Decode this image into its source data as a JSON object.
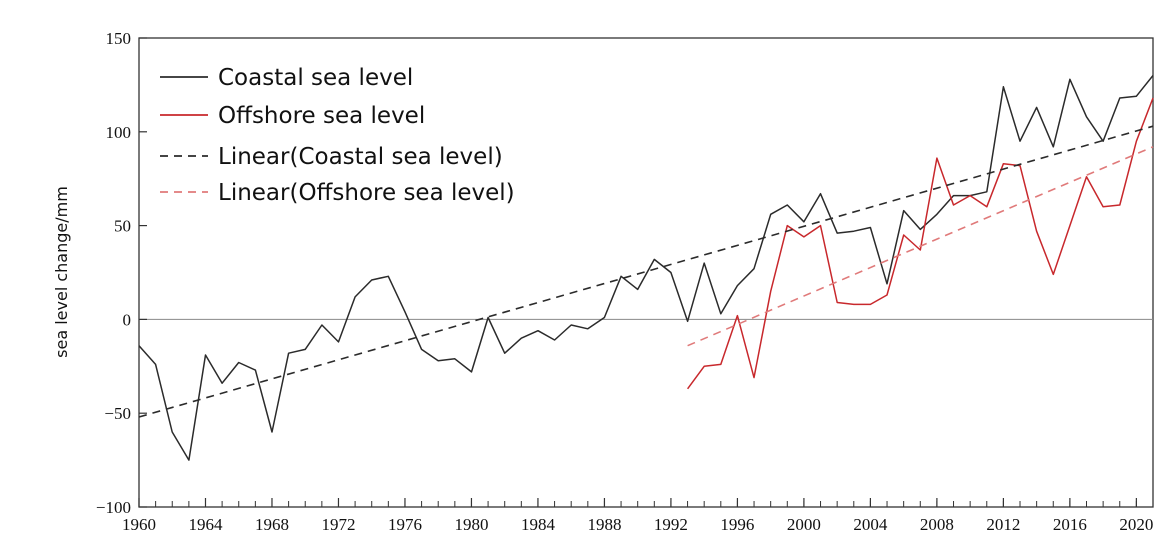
{
  "chart_data": {
    "type": "line",
    "title": "",
    "xlabel": "",
    "ylabel": "sea level change/mm",
    "xlim": [
      1960,
      2021
    ],
    "ylim": [
      -100,
      150
    ],
    "x_ticks": [
      1960,
      1964,
      1968,
      1972,
      1976,
      1980,
      1984,
      1988,
      1992,
      1996,
      2000,
      2004,
      2008,
      2012,
      2016,
      2020
    ],
    "y_ticks": [
      -100,
      -50,
      0,
      50,
      100,
      150
    ],
    "grid": false,
    "zero_line": true,
    "legend_position": "top-left",
    "series": [
      {
        "name": "Coastal sea level",
        "color": "#2b2b2b",
        "style": "solid",
        "x": [
          1960,
          1961,
          1962,
          1963,
          1964,
          1965,
          1966,
          1967,
          1968,
          1969,
          1970,
          1971,
          1972,
          1973,
          1974,
          1975,
          1976,
          1977,
          1978,
          1979,
          1980,
          1981,
          1982,
          1983,
          1984,
          1985,
          1986,
          1987,
          1988,
          1989,
          1990,
          1991,
          1992,
          1993,
          1994,
          1995,
          1996,
          1997,
          1998,
          1999,
          2000,
          2001,
          2002,
          2003,
          2004,
          2005,
          2006,
          2007,
          2008,
          2009,
          2010,
          2011,
          2012,
          2013,
          2014,
          2015,
          2016,
          2017,
          2018,
          2019,
          2020,
          2021
        ],
        "values": [
          -14,
          -24,
          -60,
          -75,
          -19,
          -34,
          -23,
          -27,
          -60,
          -18,
          -16,
          -3,
          -12,
          12,
          21,
          23,
          4,
          -16,
          -22,
          -21,
          -28,
          1,
          -18,
          -10,
          -6,
          -11,
          -3,
          -5,
          1,
          23,
          16,
          32,
          25,
          -1,
          30,
          3,
          18,
          27,
          56,
          61,
          52,
          67,
          46,
          47,
          49,
          19,
          58,
          48,
          56,
          66,
          66,
          68,
          124,
          95,
          113,
          92,
          128,
          108,
          95,
          118,
          119,
          130
        ]
      },
      {
        "name": "Offshore sea level",
        "color": "#c8282c",
        "style": "solid",
        "x": [
          1993,
          1994,
          1995,
          1996,
          1997,
          1998,
          1999,
          2000,
          2001,
          2002,
          2003,
          2004,
          2005,
          2006,
          2007,
          2008,
          2009,
          2010,
          2011,
          2012,
          2013,
          2014,
          2015,
          2016,
          2017,
          2018,
          2019,
          2020,
          2021
        ],
        "values": [
          -37,
          -25,
          -24,
          2,
          -31,
          15,
          50,
          44,
          50,
          9,
          8,
          8,
          13,
          45,
          37,
          86,
          61,
          66,
          60,
          83,
          82,
          47,
          24,
          50,
          76,
          60,
          61,
          95,
          118
        ]
      },
      {
        "name": "Linear(Coastal sea level)",
        "color": "#2b2b2b",
        "style": "dashed",
        "x": [
          1960,
          2021
        ],
        "values": [
          -52,
          103
        ]
      },
      {
        "name": "Linear(Offshore sea level)",
        "color": "#e07a7a",
        "style": "dashed",
        "x": [
          1993,
          2021
        ],
        "values": [
          -14,
          92
        ]
      }
    ]
  }
}
